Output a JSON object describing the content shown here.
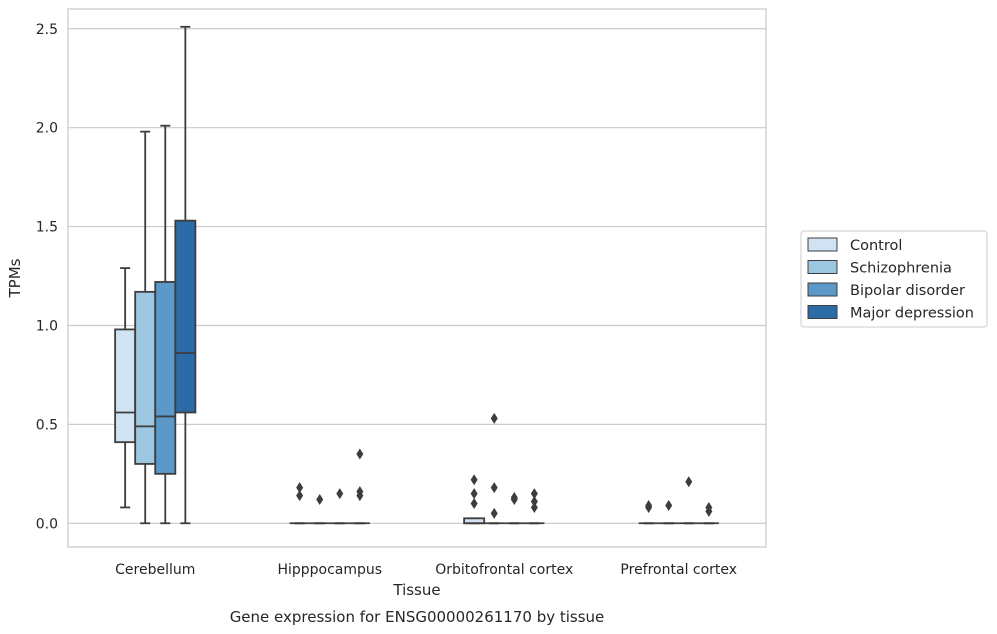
{
  "chart_data": {
    "type": "box",
    "title": "",
    "caption": "Gene expression for ENSG00000261170 by tissue",
    "xlabel": "Tissue",
    "ylabel": "TPMs",
    "ylim": [
      -0.12,
      2.6
    ],
    "yticks": [
      "0.0",
      "0.5",
      "1.0",
      "1.5",
      "2.0",
      "2.5"
    ],
    "grid": "horizontal",
    "legend_position": "right",
    "categories": [
      "Cerebellum",
      "Hipppocampus",
      "Orbitofrontal cortex",
      "Prefrontal cortex"
    ],
    "series": [
      {
        "name": "Control",
        "color": "#d1e2f2",
        "boxes": [
          {
            "whislo": 0.08,
            "q1": 0.41,
            "med": 0.56,
            "q3": 0.98,
            "whishi": 1.29,
            "fliers": []
          },
          {
            "whislo": 0.0,
            "q1": 0.0,
            "med": 0.0,
            "q3": 0.0,
            "whishi": 0.0,
            "fliers": [
              0.14,
              0.18
            ]
          },
          {
            "whislo": 0.0,
            "q1": 0.0,
            "med": 0.0,
            "q3": 0.025,
            "whishi": 0.025,
            "fliers": [
              0.1,
              0.15,
              0.22
            ]
          },
          {
            "whislo": 0.0,
            "q1": 0.0,
            "med": 0.0,
            "q3": 0.0,
            "whishi": 0.0,
            "fliers": [
              0.08,
              0.09
            ]
          }
        ]
      },
      {
        "name": "Schizophrenia",
        "color": "#9dc6e0",
        "boxes": [
          {
            "whislo": 0.0,
            "q1": 0.3,
            "med": 0.49,
            "q3": 1.17,
            "whishi": 1.98,
            "fliers": []
          },
          {
            "whislo": 0.0,
            "q1": 0.0,
            "med": 0.0,
            "q3": 0.0,
            "whishi": 0.0,
            "fliers": [
              0.12
            ]
          },
          {
            "whislo": 0.0,
            "q1": 0.0,
            "med": 0.0,
            "q3": 0.0,
            "whishi": 0.0,
            "fliers": [
              0.05,
              0.18,
              0.53
            ]
          },
          {
            "whislo": 0.0,
            "q1": 0.0,
            "med": 0.0,
            "q3": 0.0,
            "whishi": 0.0,
            "fliers": [
              0.09
            ]
          }
        ]
      },
      {
        "name": "Bipolar disorder",
        "color": "#5b9ac8",
        "boxes": [
          {
            "whislo": 0.0,
            "q1": 0.25,
            "med": 0.54,
            "q3": 1.22,
            "whishi": 2.01,
            "fliers": []
          },
          {
            "whislo": 0.0,
            "q1": 0.0,
            "med": 0.0,
            "q3": 0.0,
            "whishi": 0.0,
            "fliers": [
              0.15
            ]
          },
          {
            "whislo": 0.0,
            "q1": 0.0,
            "med": 0.0,
            "q3": 0.0,
            "whishi": 0.0,
            "fliers": [
              0.12,
              0.13
            ]
          },
          {
            "whislo": 0.0,
            "q1": 0.0,
            "med": 0.0,
            "q3": 0.0,
            "whishi": 0.0,
            "fliers": [
              0.21
            ]
          }
        ]
      },
      {
        "name": "Major depression",
        "color": "#2b6ba8",
        "boxes": [
          {
            "whislo": 0.0,
            "q1": 0.56,
            "med": 0.86,
            "q3": 1.53,
            "whishi": 2.51,
            "fliers": []
          },
          {
            "whislo": 0.0,
            "q1": 0.0,
            "med": 0.0,
            "q3": 0.0,
            "whishi": 0.0,
            "fliers": [
              0.14,
              0.16,
              0.35
            ]
          },
          {
            "whislo": 0.0,
            "q1": 0.0,
            "med": 0.0,
            "q3": 0.0,
            "whishi": 0.0,
            "fliers": [
              0.08,
              0.11,
              0.15
            ]
          },
          {
            "whislo": 0.0,
            "q1": 0.0,
            "med": 0.0,
            "q3": 0.0,
            "whishi": 0.0,
            "fliers": [
              0.06,
              0.08
            ]
          }
        ]
      }
    ]
  }
}
